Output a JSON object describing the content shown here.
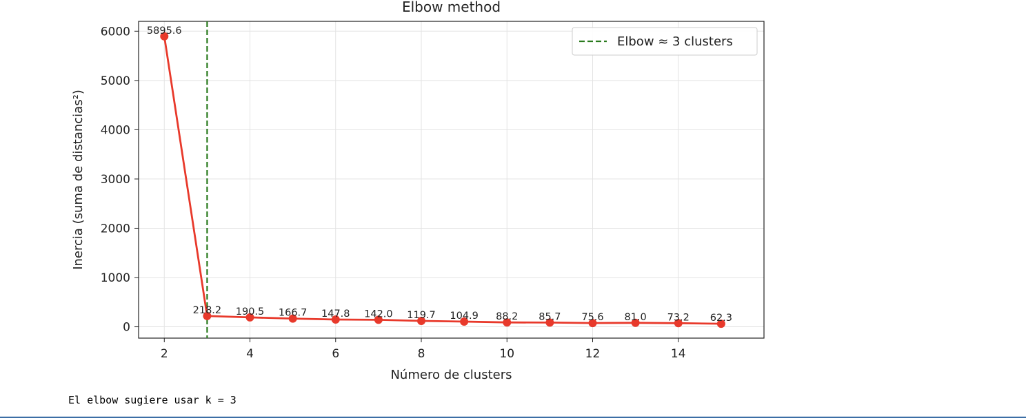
{
  "chart_data": {
    "type": "line",
    "title": "Elbow method",
    "xlabel": "Número de clusters",
    "ylabel": "Inercia (suma de distancias²)",
    "x": [
      2,
      3,
      4,
      5,
      6,
      7,
      8,
      9,
      10,
      11,
      12,
      13,
      14,
      15
    ],
    "values": [
      5895.6,
      218.2,
      190.5,
      166.7,
      147.8,
      142.0,
      119.7,
      104.9,
      88.2,
      85.7,
      75.6,
      81.0,
      73.2,
      62.3
    ],
    "data_labels": [
      "5895.6",
      "218.2",
      "190.5",
      "166.7",
      "147.8",
      "142.0",
      "119.7",
      "104.9",
      "88.2",
      "85.7",
      "75.6",
      "81.0",
      "73.2",
      "62.3"
    ],
    "xlim": [
      1.4,
      16.0
    ],
    "ylim": [
      -230,
      6200
    ],
    "x_ticks": [
      2,
      4,
      6,
      8,
      10,
      12,
      14
    ],
    "x_tick_labels": [
      "2",
      "4",
      "6",
      "8",
      "10",
      "12",
      "14"
    ],
    "y_ticks": [
      0,
      1000,
      2000,
      3000,
      4000,
      5000,
      6000
    ],
    "y_tick_labels": [
      "0",
      "1000",
      "2000",
      "3000",
      "4000",
      "5000",
      "6000"
    ],
    "grid": true,
    "line_color": "#e8392b",
    "vline": {
      "x": 3,
      "label": "Elbow ≈ 3 clusters",
      "color": "#2a7a1e",
      "style": "dashed"
    },
    "legend_position": "top-right"
  },
  "output": {
    "text": "El elbow sugiere usar k = 3"
  }
}
